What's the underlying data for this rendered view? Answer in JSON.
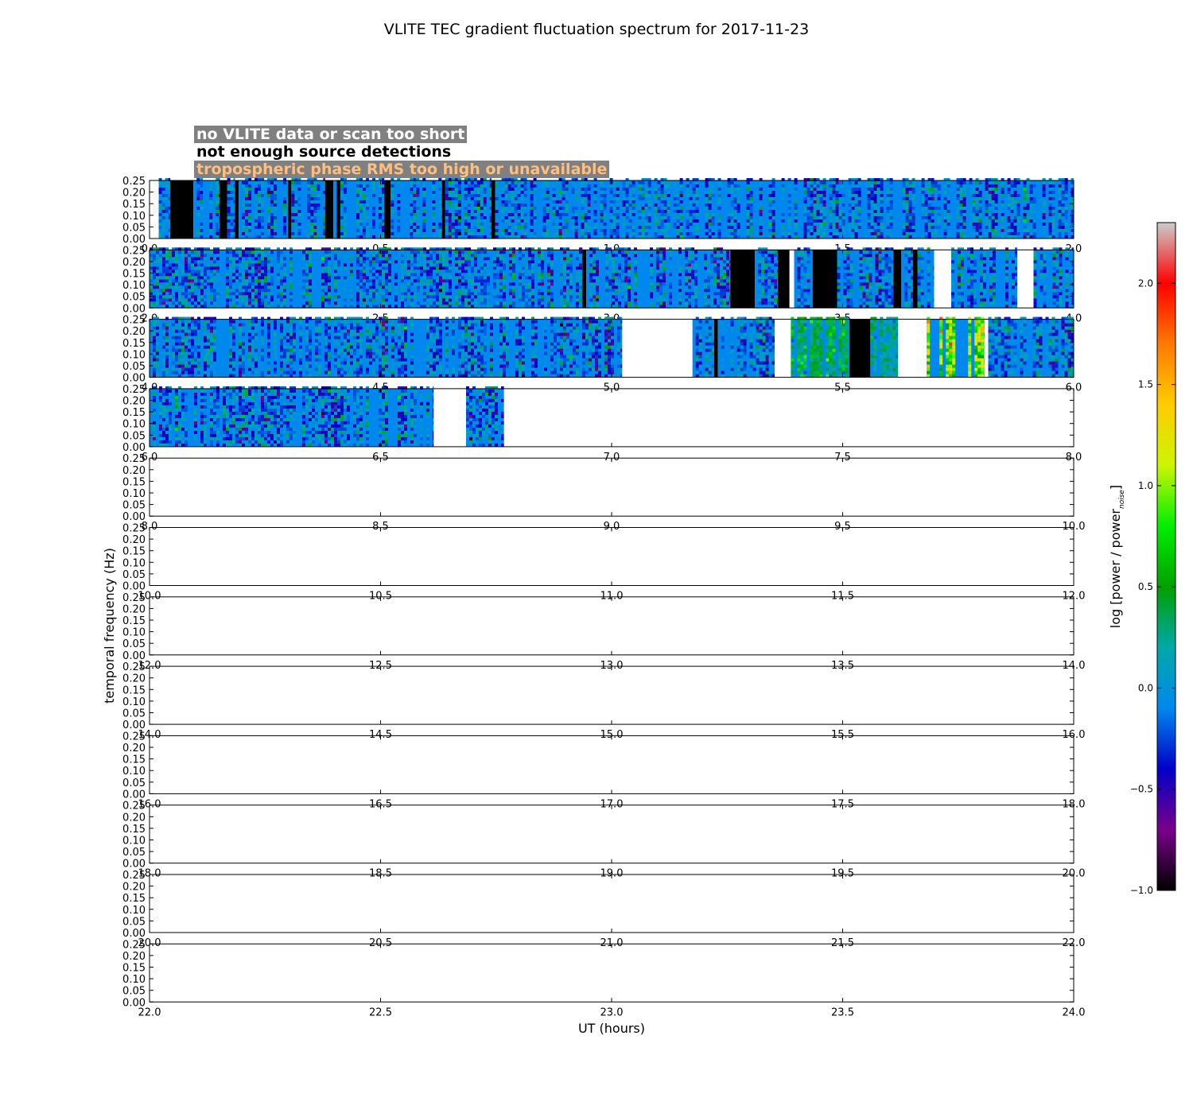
{
  "chart_data": {
    "type": "heatmap",
    "title": "VLITE TEC gradient fluctuation spectrum for 2017-11-23",
    "xlabel": "UT (hours)",
    "ylabel": "temporal frequency (Hz)",
    "colorbar_label": "log [power / power",
    "colorbar_label_subscript": "noise",
    "colorbar_label_close": "]",
    "ylim": [
      0,
      0.25
    ],
    "y_ticks": [
      "0.00",
      "0.05",
      "0.10",
      "0.15",
      "0.20",
      "0.25"
    ],
    "colorbar_range": [
      -1.0,
      2.3
    ],
    "colorbar_ticks": [
      {
        "value": 2.0,
        "label": "2.0"
      },
      {
        "value": 1.5,
        "label": "1.5"
      },
      {
        "value": 1.0,
        "label": "1.0"
      },
      {
        "value": 0.5,
        "label": "0.5"
      },
      {
        "value": 0.0,
        "label": "0.0"
      },
      {
        "value": -0.5,
        "label": "−0.5"
      },
      {
        "value": -1.0,
        "label": "−1.0"
      }
    ],
    "colormap": [
      "#000000",
      "#7a008a",
      "#0000c8",
      "#0088ee",
      "#00a8a8",
      "#00a000",
      "#00ee00",
      "#ccf500",
      "#ffcc00",
      "#ff7a00",
      "#ff0000",
      "#cccccc"
    ],
    "legend": [
      {
        "label": "no VLITE data or scan too short",
        "text_color": "#ffffff",
        "box_color": "#808080"
      },
      {
        "label": "not enough source detections",
        "text_color": "#000000",
        "box_color": "#ffffff"
      },
      {
        "label": "tropospheric phase RMS too high or unavailable",
        "text_color": "#ffbf80",
        "box_color": "#808080"
      }
    ],
    "rows": [
      {
        "xlim": [
          0,
          2
        ],
        "x_ticks": [
          "0.0",
          "0.5",
          "1.0",
          "1.5",
          "2.0"
        ],
        "segments": [
          {
            "start": 0.02,
            "end": 0.045,
            "status": "data",
            "level": -0.1
          },
          {
            "start": 0.045,
            "end": 0.095,
            "status": "insufficient_detections"
          },
          {
            "start": 0.095,
            "end": 0.152,
            "status": "data",
            "level": -0.1
          },
          {
            "start": 0.152,
            "end": 0.168,
            "status": "insufficient_detections"
          },
          {
            "start": 0.168,
            "end": 0.185,
            "status": "data",
            "level": -0.1
          },
          {
            "start": 0.185,
            "end": 0.193,
            "status": "insufficient_detections"
          },
          {
            "start": 0.193,
            "end": 0.3,
            "status": "data",
            "level": -0.1
          },
          {
            "start": 0.3,
            "end": 0.307,
            "status": "insufficient_detections"
          },
          {
            "start": 0.307,
            "end": 0.38,
            "status": "data",
            "level": -0.1
          },
          {
            "start": 0.38,
            "end": 0.398,
            "status": "insufficient_detections"
          },
          {
            "start": 0.398,
            "end": 0.405,
            "status": "data",
            "level": -0.1
          },
          {
            "start": 0.405,
            "end": 0.413,
            "status": "insufficient_detections"
          },
          {
            "start": 0.413,
            "end": 0.508,
            "status": "data",
            "level": -0.1
          },
          {
            "start": 0.508,
            "end": 0.522,
            "status": "insufficient_detections"
          },
          {
            "start": 0.522,
            "end": 0.633,
            "status": "data",
            "level": -0.1
          },
          {
            "start": 0.633,
            "end": 0.64,
            "status": "insufficient_detections"
          },
          {
            "start": 0.64,
            "end": 0.74,
            "status": "data",
            "level": -0.1
          },
          {
            "start": 0.74,
            "end": 0.748,
            "status": "insufficient_detections"
          },
          {
            "start": 0.748,
            "end": 2.0,
            "status": "data",
            "level": -0.1
          }
        ]
      },
      {
        "xlim": [
          2,
          4
        ],
        "x_ticks": [
          "2.0",
          "2.5",
          "3.0",
          "3.5",
          "4.0"
        ],
        "segments": [
          {
            "start": 2.0,
            "end": 2.937,
            "status": "data",
            "level": -0.1
          },
          {
            "start": 2.937,
            "end": 2.945,
            "status": "insufficient_detections"
          },
          {
            "start": 2.945,
            "end": 3.257,
            "status": "data",
            "level": -0.1
          },
          {
            "start": 3.257,
            "end": 3.31,
            "status": "insufficient_detections"
          },
          {
            "start": 3.31,
            "end": 3.36,
            "status": "data",
            "level": -0.1
          },
          {
            "start": 3.36,
            "end": 3.385,
            "status": "insufficient_detections"
          },
          {
            "start": 3.385,
            "end": 3.395,
            "status": "no_data"
          },
          {
            "start": 3.395,
            "end": 3.435,
            "status": "data",
            "level": -0.1
          },
          {
            "start": 3.435,
            "end": 3.488,
            "status": "insufficient_detections"
          },
          {
            "start": 3.488,
            "end": 3.61,
            "status": "data",
            "level": -0.1
          },
          {
            "start": 3.61,
            "end": 3.627,
            "status": "insufficient_detections"
          },
          {
            "start": 3.627,
            "end": 3.652,
            "status": "data",
            "level": -0.1
          },
          {
            "start": 3.652,
            "end": 3.662,
            "status": "insufficient_detections"
          },
          {
            "start": 3.662,
            "end": 3.698,
            "status": "data",
            "level": -0.1
          },
          {
            "start": 3.698,
            "end": 3.735,
            "status": "no_data"
          },
          {
            "start": 3.735,
            "end": 3.878,
            "status": "data",
            "level": -0.1
          },
          {
            "start": 3.878,
            "end": 3.913,
            "status": "no_data"
          },
          {
            "start": 3.913,
            "end": 4.0,
            "status": "data",
            "level": -0.1
          }
        ]
      },
      {
        "xlim": [
          4,
          6
        ],
        "x_ticks": [
          "4.0",
          "4.5",
          "5.0",
          "5.5",
          "6.0"
        ],
        "segments": [
          {
            "start": 4.0,
            "end": 5.023,
            "status": "data",
            "level": -0.1
          },
          {
            "start": 5.023,
            "end": 5.175,
            "status": "no_data"
          },
          {
            "start": 5.175,
            "end": 5.222,
            "status": "data",
            "level": -0.1
          },
          {
            "start": 5.222,
            "end": 5.23,
            "status": "insufficient_detections"
          },
          {
            "start": 5.23,
            "end": 5.353,
            "status": "data",
            "level": -0.1
          },
          {
            "start": 5.353,
            "end": 5.388,
            "status": "no_data"
          },
          {
            "start": 5.388,
            "end": 5.515,
            "status": "data",
            "level": 0.4
          },
          {
            "start": 5.515,
            "end": 5.56,
            "status": "insufficient_detections"
          },
          {
            "start": 5.56,
            "end": 5.62,
            "status": "data",
            "level": 0.2
          },
          {
            "start": 5.62,
            "end": 5.682,
            "status": "no_data"
          },
          {
            "start": 5.682,
            "end": 5.807,
            "status": "data",
            "level": 1.0
          },
          {
            "start": 5.807,
            "end": 5.815,
            "status": "no_data"
          },
          {
            "start": 5.815,
            "end": 6.0,
            "status": "data",
            "level": -0.1
          }
        ]
      },
      {
        "xlim": [
          6,
          8
        ],
        "x_ticks": [
          "6.0",
          "6.5",
          "7.0",
          "7.5",
          "8.0"
        ],
        "segments": [
          {
            "start": 6.0,
            "end": 6.615,
            "status": "data",
            "level": -0.1
          },
          {
            "start": 6.615,
            "end": 6.685,
            "status": "no_data"
          },
          {
            "start": 6.685,
            "end": 6.767,
            "status": "data",
            "level": -0.1
          }
        ]
      },
      {
        "xlim": [
          8,
          10
        ],
        "x_ticks": [
          "8.0",
          "8.5",
          "9.0",
          "9.5",
          "10.0"
        ],
        "segments": []
      },
      {
        "xlim": [
          10,
          12
        ],
        "x_ticks": [
          "10.0",
          "10.5",
          "11.0",
          "11.5",
          "12.0"
        ],
        "segments": []
      },
      {
        "xlim": [
          12,
          14
        ],
        "x_ticks": [
          "12.0",
          "12.5",
          "13.0",
          "13.5",
          "14.0"
        ],
        "segments": []
      },
      {
        "xlim": [
          14,
          16
        ],
        "x_ticks": [
          "14.0",
          "14.5",
          "15.0",
          "15.5",
          "16.0"
        ],
        "segments": []
      },
      {
        "xlim": [
          16,
          18
        ],
        "x_ticks": [
          "16.0",
          "16.5",
          "17.0",
          "17.5",
          "18.0"
        ],
        "segments": []
      },
      {
        "xlim": [
          18,
          20
        ],
        "x_ticks": [
          "18.0",
          "18.5",
          "19.0",
          "19.5",
          "20.0"
        ],
        "segments": []
      },
      {
        "xlim": [
          20,
          22
        ],
        "x_ticks": [
          "20.0",
          "20.5",
          "21.0",
          "21.5",
          "22.0"
        ],
        "segments": []
      },
      {
        "xlim": [
          22,
          24
        ],
        "x_ticks": [
          "22.0",
          "22.5",
          "23.0",
          "23.5",
          "24.0"
        ],
        "segments": []
      }
    ]
  }
}
